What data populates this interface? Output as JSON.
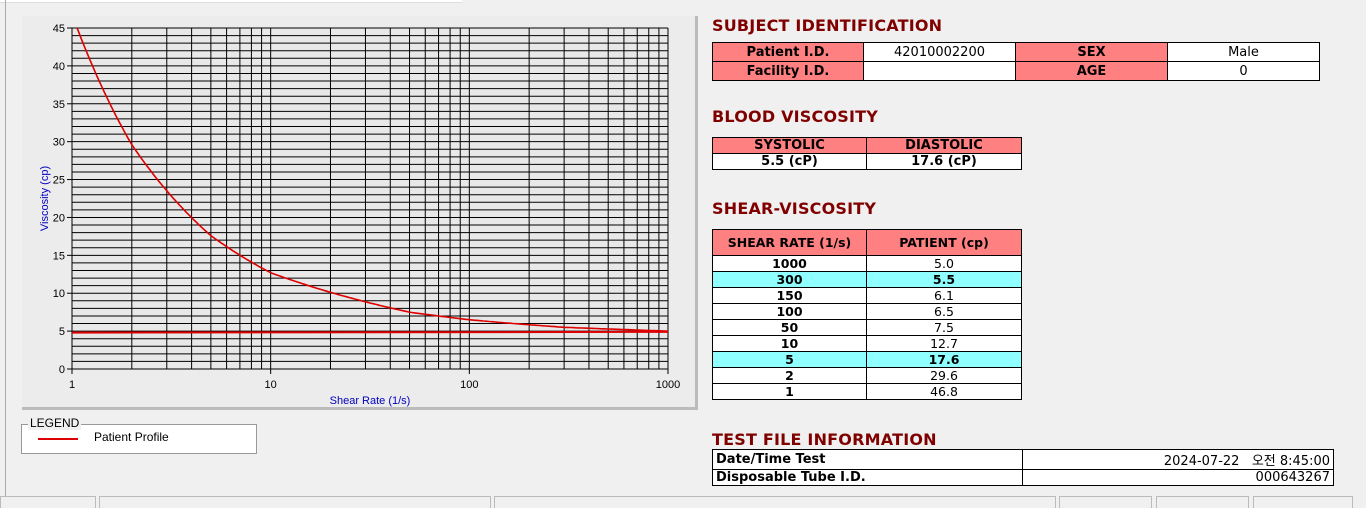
{
  "chart_data": {
    "type": "line",
    "xlabel": "Shear Rate (1/s)",
    "ylabel": "Viscosity (cp)",
    "xscale": "log",
    "xlim": [
      1,
      1000
    ],
    "ylim": [
      0,
      45
    ],
    "xticks": [
      "1",
      "10",
      "100",
      "1000"
    ],
    "yticks": [
      "0",
      "5",
      "10",
      "15",
      "20",
      "25",
      "30",
      "35",
      "40",
      "45"
    ],
    "grid": true,
    "legend_position": "below-left",
    "series": [
      {
        "name": "Patient Profile",
        "color": "#dd0000",
        "x": [
          1,
          2,
          5,
          10,
          50,
          100,
          150,
          300,
          1000
        ],
        "y": [
          46.8,
          29.6,
          17.6,
          12.7,
          7.5,
          6.5,
          6.1,
          5.5,
          5.0
        ]
      },
      {
        "color": "#dd0000",
        "x": [
          1,
          1000
        ],
        "y": [
          4.8,
          4.9
        ]
      }
    ]
  },
  "legend": {
    "title": "LEGEND",
    "item": "Patient Profile"
  },
  "subject": {
    "title": "SUBJECT IDENTIFICATION",
    "patient_id_label": "Patient I.D.",
    "patient_id": "42010002200",
    "sex_label": "SEX",
    "sex": "Male",
    "facility_label": "Facility I.D.",
    "facility": "",
    "age_label": "AGE",
    "age": "0"
  },
  "blood": {
    "title": "BLOOD VISCOSITY",
    "systolic_label": "SYSTOLIC",
    "diastolic_label": "DIASTOLIC",
    "systolic": "5.5 (cP)",
    "diastolic": "17.6 (cP)"
  },
  "shear": {
    "title": "SHEAR-VISCOSITY",
    "col1": "SHEAR RATE (1/s)",
    "col2": "PATIENT (cp)",
    "rows": [
      {
        "rate": "1000",
        "val": "5.0"
      },
      {
        "rate": "300",
        "val": "5.5",
        "hl": true
      },
      {
        "rate": "150",
        "val": "6.1"
      },
      {
        "rate": "100",
        "val": "6.5"
      },
      {
        "rate": "50",
        "val": "7.5"
      },
      {
        "rate": "10",
        "val": "12.7"
      },
      {
        "rate": "5",
        "val": "17.6",
        "hl": true
      },
      {
        "rate": "2",
        "val": "29.6"
      },
      {
        "rate": "1",
        "val": "46.8"
      }
    ]
  },
  "testfile": {
    "title": "TEST FILE INFORMATION",
    "date_label": "Date/Time Test",
    "date": "2024-07-22   오전 8:45:00",
    "tube_label": "Disposable Tube I.D.",
    "tube": "000643267"
  },
  "colors": {
    "header": "#ff8080",
    "highlight": "#90ffff",
    "title": "#800000",
    "curve": "#dd0000"
  }
}
